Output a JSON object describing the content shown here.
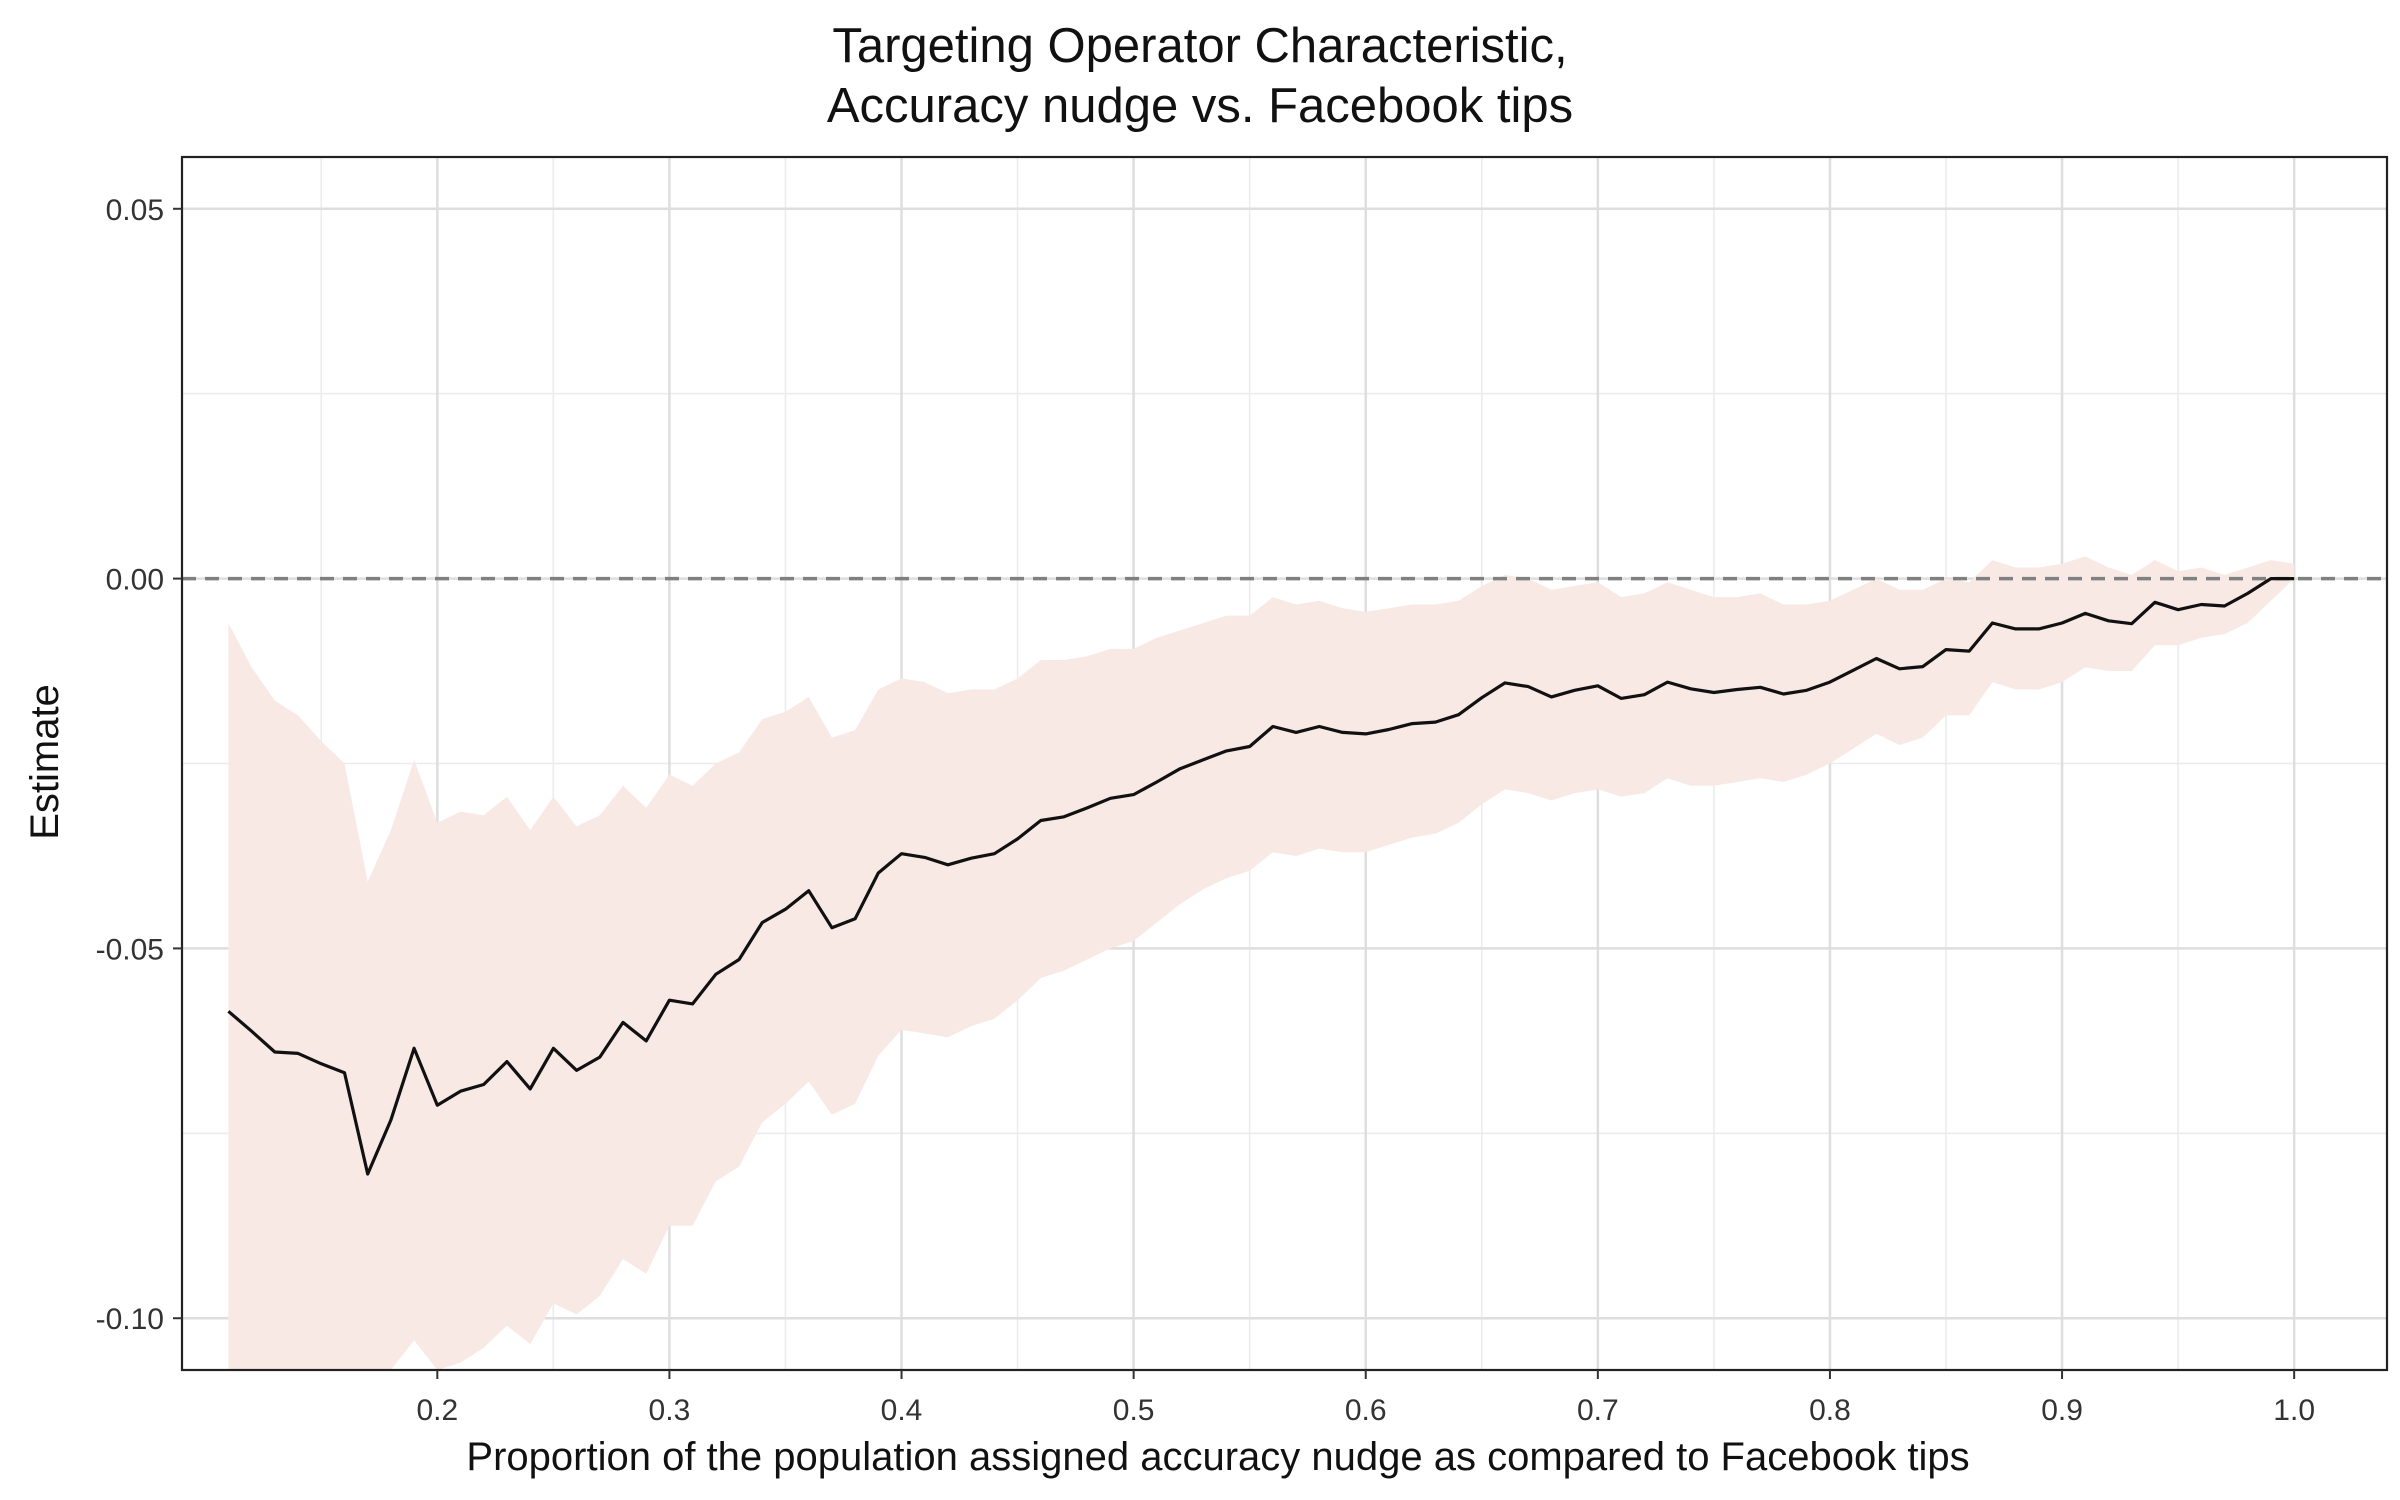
{
  "chart_data": {
    "type": "line",
    "title": "Targeting Operator Characteristic,",
    "subtitle": "Accuracy nudge vs. Facebook tips",
    "xlabel": "Proportion of the population assigned accuracy nudge as compared to Facebook tips",
    "ylabel": "Estimate",
    "xlim": [
      0.09,
      1.04
    ],
    "ylim": [
      -0.107,
      0.057
    ],
    "x_ticks": [
      0.2,
      0.3,
      0.4,
      0.5,
      0.6,
      0.7,
      0.8,
      0.9,
      1.0
    ],
    "x_tick_labels": [
      "0.2",
      "0.3",
      "0.4",
      "0.5",
      "0.6",
      "0.7",
      "0.8",
      "0.9",
      "1.0"
    ],
    "y_ticks": [
      -0.1,
      -0.05,
      0.0,
      0.05
    ],
    "y_tick_labels": [
      "-0.10",
      "-0.05",
      "0.00",
      "0.05"
    ],
    "grid": true,
    "reference_line": {
      "y": 0,
      "style": "dashed",
      "color": "#808080"
    },
    "colors": {
      "line": "#111111",
      "band": "#f8e9e5",
      "frame": "#222222"
    },
    "x": [
      0.11,
      0.12,
      0.13,
      0.14,
      0.15,
      0.16,
      0.17,
      0.18,
      0.19,
      0.2,
      0.21,
      0.22,
      0.23,
      0.24,
      0.25,
      0.26,
      0.27,
      0.28,
      0.29,
      0.3,
      0.31,
      0.32,
      0.33,
      0.34,
      0.35,
      0.36,
      0.37,
      0.38,
      0.39,
      0.4,
      0.41,
      0.42,
      0.43,
      0.44,
      0.45,
      0.46,
      0.47,
      0.48,
      0.49,
      0.5,
      0.51,
      0.52,
      0.53,
      0.54,
      0.55,
      0.56,
      0.57,
      0.58,
      0.59,
      0.6,
      0.61,
      0.62,
      0.63,
      0.64,
      0.65,
      0.66,
      0.67,
      0.68,
      0.69,
      0.7,
      0.71,
      0.72,
      0.73,
      0.74,
      0.75,
      0.76,
      0.77,
      0.78,
      0.79,
      0.8,
      0.81,
      0.82,
      0.83,
      0.84,
      0.85,
      0.86,
      0.87,
      0.88,
      0.89,
      0.9,
      0.91,
      0.92,
      0.93,
      0.94,
      0.95,
      0.96,
      0.97,
      0.98,
      0.99,
      1.0
    ],
    "series": [
      {
        "values": [
          -0.0585,
          -0.0612,
          -0.064,
          -0.0642,
          -0.0656,
          -0.0668,
          -0.0805,
          -0.0732,
          -0.0635,
          -0.0712,
          -0.0693,
          -0.0684,
          -0.0653,
          -0.069,
          -0.0635,
          -0.0665,
          -0.0647,
          -0.06,
          -0.0625,
          -0.057,
          -0.0575,
          -0.0535,
          -0.0515,
          -0.0465,
          -0.0447,
          -0.0422,
          -0.0472,
          -0.046,
          -0.0398,
          -0.0372,
          -0.0377,
          -0.0387,
          -0.0378,
          -0.0372,
          -0.0352,
          -0.0327,
          -0.0322,
          -0.031,
          -0.0297,
          -0.0292,
          -0.0275,
          -0.0257,
          -0.0245,
          -0.0233,
          -0.0227,
          -0.02,
          -0.0208,
          -0.02,
          -0.0208,
          -0.021,
          -0.0204,
          -0.0196,
          -0.0194,
          -0.0184,
          -0.0161,
          -0.0141,
          -0.0146,
          -0.016,
          -0.0151,
          -0.0145,
          -0.0162,
          -0.0157,
          -0.014,
          -0.0149,
          -0.0154,
          -0.015,
          -0.0147,
          -0.0156,
          -0.0151,
          -0.014,
          -0.0124,
          -0.0108,
          -0.0122,
          -0.0119,
          -0.0096,
          -0.0098,
          -0.006,
          -0.0068,
          -0.0068,
          -0.006,
          -0.0047,
          -0.0057,
          -0.0061,
          -0.0032,
          -0.0042,
          -0.0035,
          -0.0037,
          -0.002,
          0.0,
          0.0
        ]
      }
    ],
    "ci_lower": [
      -0.108,
      -0.108,
      -0.108,
      -0.108,
      -0.108,
      -0.108,
      -0.108,
      -0.108,
      -0.103,
      -0.108,
      -0.106,
      -0.104,
      -0.101,
      -0.1035,
      -0.098,
      -0.0995,
      -0.097,
      -0.092,
      -0.094,
      -0.0875,
      -0.0875,
      -0.0815,
      -0.0795,
      -0.0735,
      -0.071,
      -0.068,
      -0.0725,
      -0.071,
      -0.0645,
      -0.061,
      -0.0615,
      -0.062,
      -0.0605,
      -0.0595,
      -0.057,
      -0.054,
      -0.053,
      -0.0515,
      -0.05,
      -0.049,
      -0.0465,
      -0.044,
      -0.042,
      -0.0405,
      -0.0395,
      -0.037,
      -0.0375,
      -0.0365,
      -0.037,
      -0.037,
      -0.036,
      -0.035,
      -0.0345,
      -0.033,
      -0.0305,
      -0.0285,
      -0.029,
      -0.03,
      -0.029,
      -0.0285,
      -0.0295,
      -0.029,
      -0.027,
      -0.028,
      -0.028,
      -0.0275,
      -0.027,
      -0.0275,
      -0.0265,
      -0.025,
      -0.023,
      -0.021,
      -0.0225,
      -0.0215,
      -0.0185,
      -0.0185,
      -0.014,
      -0.015,
      -0.015,
      -0.014,
      -0.012,
      -0.0125,
      -0.0125,
      -0.009,
      -0.009,
      -0.008,
      -0.0075,
      -0.006,
      -0.003,
      0.0
    ],
    "ci_upper": [
      -0.006,
      -0.012,
      -0.0165,
      -0.0185,
      -0.022,
      -0.025,
      -0.041,
      -0.034,
      -0.0245,
      -0.033,
      -0.0315,
      -0.032,
      -0.0295,
      -0.034,
      -0.0295,
      -0.0335,
      -0.032,
      -0.028,
      -0.031,
      -0.0265,
      -0.028,
      -0.025,
      -0.0235,
      -0.019,
      -0.018,
      -0.016,
      -0.0215,
      -0.0205,
      -0.015,
      -0.0135,
      -0.014,
      -0.0155,
      -0.015,
      -0.015,
      -0.0135,
      -0.011,
      -0.011,
      -0.0105,
      -0.0095,
      -0.0095,
      -0.008,
      -0.007,
      -0.006,
      -0.005,
      -0.005,
      -0.0025,
      -0.0035,
      -0.003,
      -0.004,
      -0.0045,
      -0.004,
      -0.0035,
      -0.0035,
      -0.003,
      -0.001,
      0.0005,
      0.0,
      -0.0015,
      -0.001,
      -0.0005,
      -0.0025,
      -0.002,
      -0.0005,
      -0.0015,
      -0.0025,
      -0.0025,
      -0.002,
      -0.0035,
      -0.0035,
      -0.003,
      -0.0015,
      0.0,
      -0.0015,
      -0.0015,
      0.0,
      -0.0005,
      0.0025,
      0.0015,
      0.0015,
      0.002,
      0.003,
      0.0015,
      0.0005,
      0.0025,
      0.001,
      0.0015,
      0.0005,
      0.0015,
      0.0025,
      0.002
    ]
  }
}
